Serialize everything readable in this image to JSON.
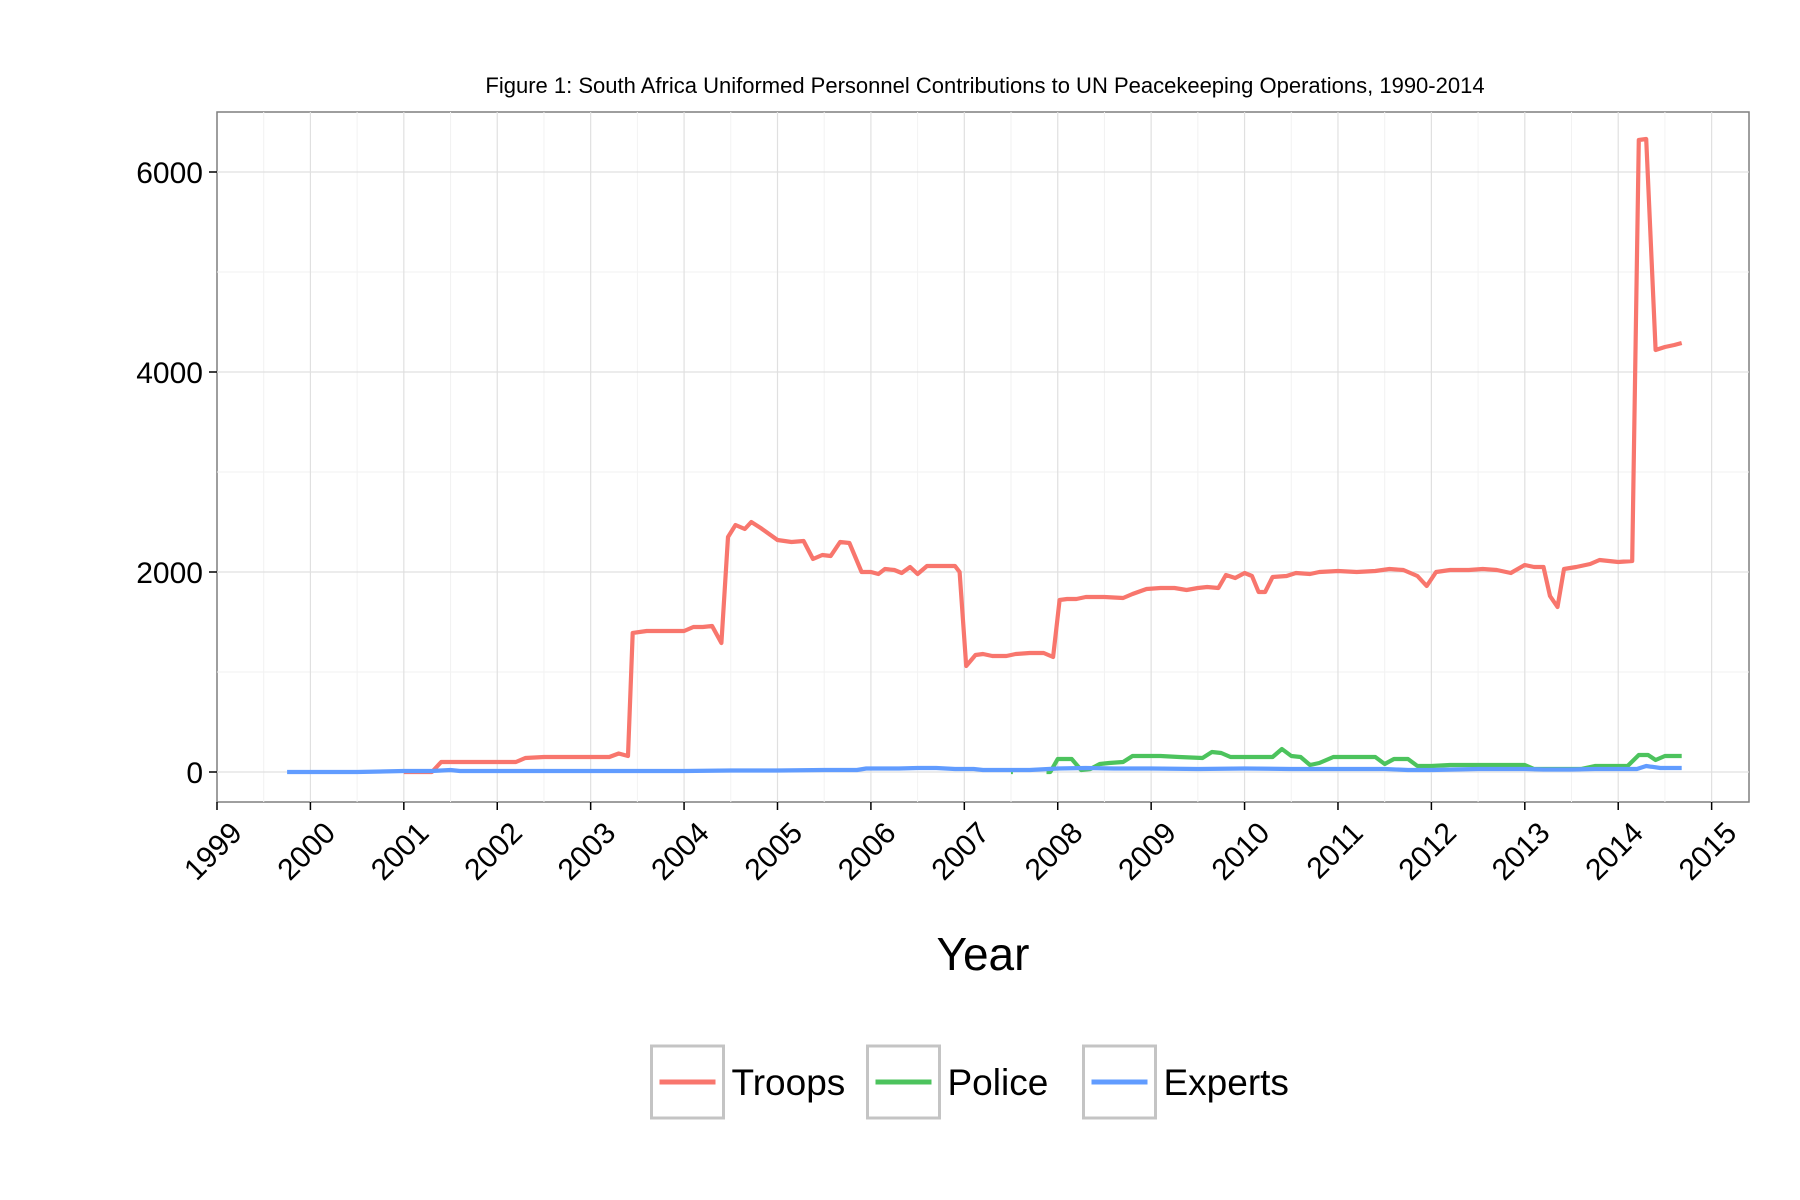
{
  "chart_data": {
    "type": "line",
    "title": "Figure 1: South Africa Uniformed Personnel Contributions to UN Peacekeeping Operations, 1990-2014",
    "xlabel": "Year",
    "ylabel": "",
    "xlim": [
      1999,
      2015.4
    ],
    "ylim": [
      -300,
      6600
    ],
    "x_ticks": [
      "1999",
      "2000",
      "2001",
      "2002",
      "2003",
      "2004",
      "2005",
      "2006",
      "2007",
      "2008",
      "2009",
      "2010",
      "2011",
      "2012",
      "2013",
      "2014",
      "2015"
    ],
    "y_ticks": [
      "0",
      "2000",
      "4000",
      "6000"
    ],
    "grid": true,
    "legend_position": "bottom",
    "series": [
      {
        "name": "Troops",
        "color": "#f8766d",
        "points": [
          [
            2001.0,
            0
          ],
          [
            2001.3,
            0
          ],
          [
            2001.4,
            100
          ],
          [
            2001.6,
            100
          ],
          [
            2002.0,
            100
          ],
          [
            2002.2,
            100
          ],
          [
            2002.3,
            140
          ],
          [
            2002.5,
            150
          ],
          [
            2002.7,
            150
          ],
          [
            2003.0,
            150
          ],
          [
            2003.2,
            150
          ],
          [
            2003.3,
            185
          ],
          [
            2003.4,
            160
          ],
          [
            2003.45,
            1390
          ],
          [
            2003.6,
            1410
          ],
          [
            2003.8,
            1410
          ],
          [
            2004.0,
            1410
          ],
          [
            2004.1,
            1450
          ],
          [
            2004.2,
            1450
          ],
          [
            2004.3,
            1460
          ],
          [
            2004.4,
            1290
          ],
          [
            2004.47,
            2350
          ],
          [
            2004.55,
            2470
          ],
          [
            2004.65,
            2430
          ],
          [
            2004.72,
            2500
          ],
          [
            2004.82,
            2440
          ],
          [
            2005.0,
            2320
          ],
          [
            2005.15,
            2300
          ],
          [
            2005.28,
            2310
          ],
          [
            2005.38,
            2130
          ],
          [
            2005.48,
            2170
          ],
          [
            2005.57,
            2160
          ],
          [
            2005.67,
            2300
          ],
          [
            2005.77,
            2290
          ],
          [
            2005.9,
            2000
          ],
          [
            2006.0,
            2000
          ],
          [
            2006.08,
            1980
          ],
          [
            2006.15,
            2030
          ],
          [
            2006.25,
            2020
          ],
          [
            2006.33,
            1990
          ],
          [
            2006.42,
            2050
          ],
          [
            2006.5,
            1980
          ],
          [
            2006.6,
            2060
          ],
          [
            2006.7,
            2060
          ],
          [
            2006.8,
            2060
          ],
          [
            2006.9,
            2060
          ],
          [
            2006.95,
            2000
          ],
          [
            2007.02,
            1060
          ],
          [
            2007.12,
            1170
          ],
          [
            2007.2,
            1180
          ],
          [
            2007.3,
            1160
          ],
          [
            2007.45,
            1160
          ],
          [
            2007.55,
            1180
          ],
          [
            2007.7,
            1190
          ],
          [
            2007.85,
            1190
          ],
          [
            2007.95,
            1150
          ],
          [
            2008.02,
            1720
          ],
          [
            2008.1,
            1730
          ],
          [
            2008.2,
            1730
          ],
          [
            2008.3,
            1750
          ],
          [
            2008.5,
            1750
          ],
          [
            2008.7,
            1740
          ],
          [
            2008.8,
            1780
          ],
          [
            2008.95,
            1830
          ],
          [
            2009.1,
            1840
          ],
          [
            2009.25,
            1840
          ],
          [
            2009.38,
            1820
          ],
          [
            2009.5,
            1840
          ],
          [
            2009.6,
            1850
          ],
          [
            2009.72,
            1840
          ],
          [
            2009.8,
            1970
          ],
          [
            2009.9,
            1940
          ],
          [
            2010.0,
            1990
          ],
          [
            2010.08,
            1960
          ],
          [
            2010.15,
            1800
          ],
          [
            2010.22,
            1800
          ],
          [
            2010.3,
            1950
          ],
          [
            2010.45,
            1960
          ],
          [
            2010.55,
            1990
          ],
          [
            2010.7,
            1980
          ],
          [
            2010.8,
            2000
          ],
          [
            2011.0,
            2010
          ],
          [
            2011.2,
            2000
          ],
          [
            2011.4,
            2010
          ],
          [
            2011.55,
            2030
          ],
          [
            2011.7,
            2020
          ],
          [
            2011.85,
            1960
          ],
          [
            2011.95,
            1860
          ],
          [
            2012.05,
            2000
          ],
          [
            2012.2,
            2020
          ],
          [
            2012.4,
            2020
          ],
          [
            2012.55,
            2030
          ],
          [
            2012.7,
            2020
          ],
          [
            2012.85,
            1990
          ],
          [
            2013.0,
            2070
          ],
          [
            2013.1,
            2050
          ],
          [
            2013.2,
            2050
          ],
          [
            2013.27,
            1760
          ],
          [
            2013.35,
            1650
          ],
          [
            2013.42,
            2030
          ],
          [
            2013.55,
            2050
          ],
          [
            2013.7,
            2080
          ],
          [
            2013.8,
            2120
          ],
          [
            2014.0,
            2100
          ],
          [
            2014.15,
            2110
          ],
          [
            2014.22,
            6320
          ],
          [
            2014.3,
            6330
          ],
          [
            2014.4,
            4220
          ],
          [
            2014.5,
            4250
          ],
          [
            2014.6,
            4270
          ],
          [
            2014.68,
            4290
          ]
        ]
      },
      {
        "name": "Police",
        "color": "#4cc35d",
        "points": [
          [
            2007.5,
            0
          ],
          [
            2007.52,
            0
          ],
          null,
          [
            2007.88,
            0
          ],
          [
            2007.92,
            0
          ],
          [
            2008.0,
            130
          ],
          [
            2008.15,
            130
          ],
          [
            2008.25,
            20
          ],
          [
            2008.35,
            30
          ],
          [
            2008.45,
            80
          ],
          [
            2008.55,
            90
          ],
          [
            2008.7,
            100
          ],
          [
            2008.8,
            160
          ],
          [
            2009.1,
            160
          ],
          [
            2009.3,
            150
          ],
          [
            2009.55,
            140
          ],
          [
            2009.65,
            200
          ],
          [
            2009.75,
            190
          ],
          [
            2009.85,
            150
          ],
          [
            2010.1,
            150
          ],
          [
            2010.3,
            150
          ],
          [
            2010.4,
            230
          ],
          [
            2010.5,
            160
          ],
          [
            2010.6,
            150
          ],
          [
            2010.7,
            70
          ],
          [
            2010.8,
            90
          ],
          [
            2010.95,
            150
          ],
          [
            2011.2,
            150
          ],
          [
            2011.4,
            150
          ],
          [
            2011.5,
            80
          ],
          [
            2011.6,
            130
          ],
          [
            2011.75,
            130
          ],
          [
            2011.85,
            60
          ],
          [
            2012.0,
            60
          ],
          [
            2012.2,
            70
          ],
          [
            2012.4,
            70
          ],
          [
            2012.6,
            70
          ],
          [
            2012.8,
            70
          ],
          [
            2013.0,
            70
          ],
          [
            2013.1,
            30
          ],
          [
            2013.3,
            30
          ],
          [
            2013.45,
            30
          ],
          [
            2013.6,
            30
          ],
          [
            2013.75,
            60
          ],
          [
            2013.9,
            60
          ],
          [
            2014.1,
            60
          ],
          [
            2014.22,
            170
          ],
          [
            2014.32,
            170
          ],
          [
            2014.4,
            120
          ],
          [
            2014.5,
            160
          ],
          [
            2014.68,
            160
          ]
        ]
      },
      {
        "name": "Experts",
        "color": "#619cff",
        "points": [
          [
            1999.75,
            0
          ],
          [
            2000.0,
            0
          ],
          [
            2000.5,
            0
          ],
          [
            2001.0,
            10
          ],
          [
            2001.3,
            10
          ],
          [
            2001.5,
            20
          ],
          [
            2001.6,
            10
          ],
          [
            2002.0,
            10
          ],
          [
            2003.0,
            10
          ],
          [
            2004.0,
            10
          ],
          [
            2004.5,
            15
          ],
          [
            2005.0,
            15
          ],
          [
            2005.5,
            20
          ],
          [
            2005.85,
            20
          ],
          [
            2005.95,
            35
          ],
          [
            2006.3,
            35
          ],
          [
            2006.5,
            40
          ],
          [
            2006.7,
            40
          ],
          [
            2006.9,
            30
          ],
          [
            2007.1,
            30
          ],
          [
            2007.2,
            20
          ],
          [
            2007.5,
            20
          ],
          [
            2007.7,
            20
          ],
          [
            2007.9,
            30
          ],
          [
            2008.0,
            35
          ],
          [
            2008.3,
            40
          ],
          [
            2008.6,
            35
          ],
          [
            2009.0,
            35
          ],
          [
            2009.5,
            30
          ],
          [
            2010.0,
            35
          ],
          [
            2010.5,
            30
          ],
          [
            2011.0,
            30
          ],
          [
            2011.5,
            30
          ],
          [
            2011.75,
            20
          ],
          [
            2012.0,
            20
          ],
          [
            2012.5,
            30
          ],
          [
            2013.0,
            30
          ],
          [
            2013.2,
            25
          ],
          [
            2013.5,
            25
          ],
          [
            2013.75,
            30
          ],
          [
            2014.2,
            30
          ],
          [
            2014.3,
            60
          ],
          [
            2014.45,
            40
          ],
          [
            2014.68,
            40
          ]
        ]
      }
    ]
  }
}
